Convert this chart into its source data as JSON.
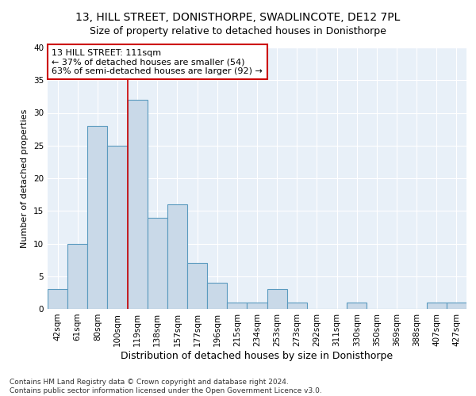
{
  "title1": "13, HILL STREET, DONISTHORPE, SWADLINCOTE, DE12 7PL",
  "title2": "Size of property relative to detached houses in Donisthorpe",
  "xlabel": "Distribution of detached houses by size in Donisthorpe",
  "ylabel": "Number of detached properties",
  "categories": [
    "42sqm",
    "61sqm",
    "80sqm",
    "100sqm",
    "119sqm",
    "138sqm",
    "157sqm",
    "177sqm",
    "196sqm",
    "215sqm",
    "234sqm",
    "253sqm",
    "273sqm",
    "292sqm",
    "311sqm",
    "330sqm",
    "350sqm",
    "369sqm",
    "388sqm",
    "407sqm",
    "427sqm"
  ],
  "values": [
    3,
    10,
    28,
    25,
    32,
    14,
    16,
    7,
    4,
    1,
    1,
    3,
    1,
    0,
    0,
    1,
    0,
    0,
    0,
    1,
    1
  ],
  "bar_color": "#c9d9e8",
  "bar_edge_color": "#5a9abf",
  "bar_linewidth": 0.8,
  "annotation_text": "13 HILL STREET: 111sqm\n← 37% of detached houses are smaller (54)\n63% of semi-detached houses are larger (92) →",
  "vline_x_index": 3.5,
  "vline_color": "#cc0000",
  "ylim": [
    0,
    40
  ],
  "yticks": [
    0,
    5,
    10,
    15,
    20,
    25,
    30,
    35,
    40
  ],
  "footer": "Contains HM Land Registry data © Crown copyright and database right 2024.\nContains public sector information licensed under the Open Government Licence v3.0.",
  "plot_bg_color": "#e8f0f8",
  "title1_fontsize": 10,
  "title2_fontsize": 9,
  "xlabel_fontsize": 9,
  "ylabel_fontsize": 8,
  "tick_fontsize": 7.5,
  "annotation_fontsize": 8,
  "footer_fontsize": 6.5
}
